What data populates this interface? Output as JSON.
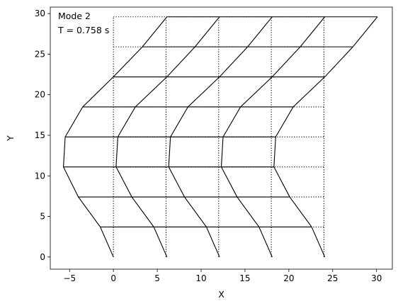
{
  "chart_data": {
    "type": "line",
    "xlabel": "X",
    "ylabel": "Y",
    "xlim": [
      -7.2,
      31.8
    ],
    "ylim": [
      -1.5,
      30.8
    ],
    "x_ticks": [
      -5,
      0,
      5,
      10,
      15,
      20,
      25,
      30
    ],
    "y_ticks": [
      0,
      5,
      10,
      15,
      20,
      25,
      30
    ],
    "grid": false,
    "annotations": [
      "Mode 2",
      "T = 0.758 s"
    ],
    "undeformed_style": "dotted",
    "deformed_style": "solid",
    "line_color": "#000000",
    "column_x": [
      0,
      6,
      12,
      18,
      24
    ],
    "floor_y": [
      0,
      3.7,
      7.4,
      11.1,
      14.8,
      18.5,
      22.2,
      25.9,
      29.6
    ],
    "deformed_columns": [
      [
        [
          0,
          0
        ],
        [
          -1.5,
          3.7
        ],
        [
          -4.0,
          7.4
        ],
        [
          -5.7,
          11.1
        ],
        [
          -5.5,
          14.8
        ],
        [
          -3.5,
          18.5
        ],
        [
          0,
          22.2
        ],
        [
          3.3,
          25.9
        ],
        [
          6.1,
          29.6
        ]
      ],
      [
        [
          6.1,
          0
        ],
        [
          4.6,
          3.7
        ],
        [
          2.1,
          7.4
        ],
        [
          0.3,
          11.1
        ],
        [
          0.5,
          14.8
        ],
        [
          2.5,
          18.5
        ],
        [
          6.1,
          22.2
        ],
        [
          9.3,
          25.9
        ],
        [
          12.1,
          29.6
        ]
      ],
      [
        [
          12.1,
          0
        ],
        [
          10.6,
          3.7
        ],
        [
          8.1,
          7.4
        ],
        [
          6.3,
          11.1
        ],
        [
          6.5,
          14.8
        ],
        [
          8.5,
          18.5
        ],
        [
          12.1,
          22.2
        ],
        [
          15.3,
          25.9
        ],
        [
          18.1,
          29.6
        ]
      ],
      [
        [
          18.1,
          0
        ],
        [
          16.6,
          3.7
        ],
        [
          14.1,
          7.4
        ],
        [
          12.3,
          11.1
        ],
        [
          12.5,
          14.8
        ],
        [
          14.5,
          18.5
        ],
        [
          18.1,
          22.2
        ],
        [
          21.3,
          25.9
        ],
        [
          24.1,
          29.6
        ]
      ],
      [
        [
          24.1,
          0
        ],
        [
          22.6,
          3.7
        ],
        [
          20.1,
          7.4
        ],
        [
          18.3,
          11.1
        ],
        [
          18.5,
          14.8
        ],
        [
          20.5,
          18.5
        ],
        [
          24.1,
          22.2
        ],
        [
          27.3,
          25.9
        ],
        [
          30.1,
          29.6
        ]
      ]
    ]
  }
}
